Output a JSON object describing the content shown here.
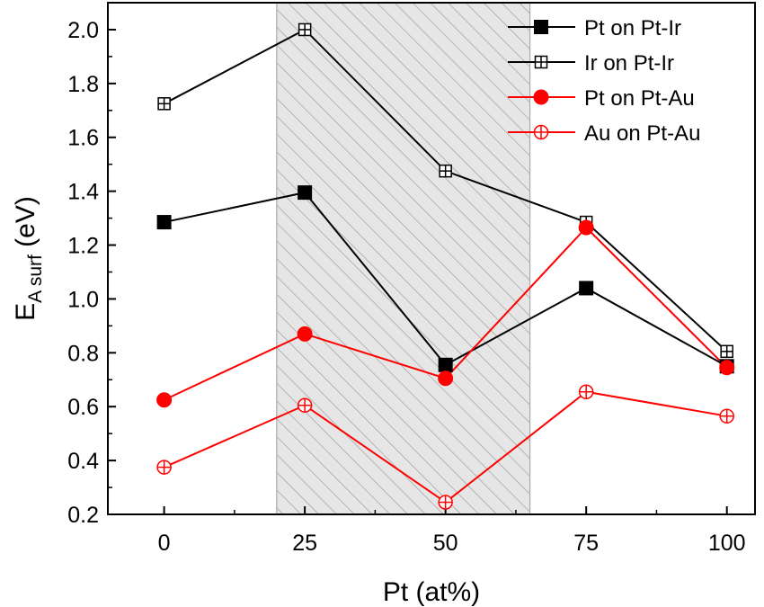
{
  "chart_data": {
    "type": "line",
    "x": [
      0,
      25,
      50,
      75,
      100
    ],
    "xlim": [
      -10,
      105
    ],
    "ylim": [
      0.2,
      2.1
    ],
    "xticks": [
      "0",
      "25",
      "50",
      "75",
      "100"
    ],
    "xtick_values": [
      0,
      25,
      50,
      75,
      100
    ],
    "yticks": [
      "0.2",
      "0.4",
      "0.6",
      "0.8",
      "1.0",
      "1.2",
      "1.4",
      "1.6",
      "1.8",
      "2.0"
    ],
    "ytick_values": [
      0.2,
      0.4,
      0.6,
      0.8,
      1.0,
      1.2,
      1.4,
      1.6,
      1.8,
      2.0
    ],
    "xlabel": "Pt (at%)",
    "ylabel_main": "E",
    "ylabel_sub": "A surf",
    "ylabel_unit": " (eV)",
    "legend_position": "top-right",
    "shaded_region": {
      "x_start": 20,
      "x_end": 65,
      "pattern": "diagonal-hatch",
      "color": "#e6e6e6"
    },
    "series": [
      {
        "name": "Pt on Pt-Ir",
        "color": "#000000",
        "marker": "filled-square",
        "values": [
          1.285,
          1.395,
          0.755,
          1.04,
          0.75
        ]
      },
      {
        "name": "Ir on Pt-Ir",
        "color": "#000000",
        "marker": "crossed-square",
        "values": [
          1.725,
          2.0,
          1.475,
          1.285,
          0.805
        ]
      },
      {
        "name": "Pt on Pt-Au",
        "color": "#ff0000",
        "marker": "filled-circle",
        "values": [
          0.625,
          0.87,
          0.705,
          1.265,
          0.745
        ]
      },
      {
        "name": "Au on Pt-Au",
        "color": "#ff0000",
        "marker": "crossed-circle",
        "values": [
          0.375,
          0.605,
          0.245,
          0.655,
          0.565
        ]
      }
    ]
  }
}
